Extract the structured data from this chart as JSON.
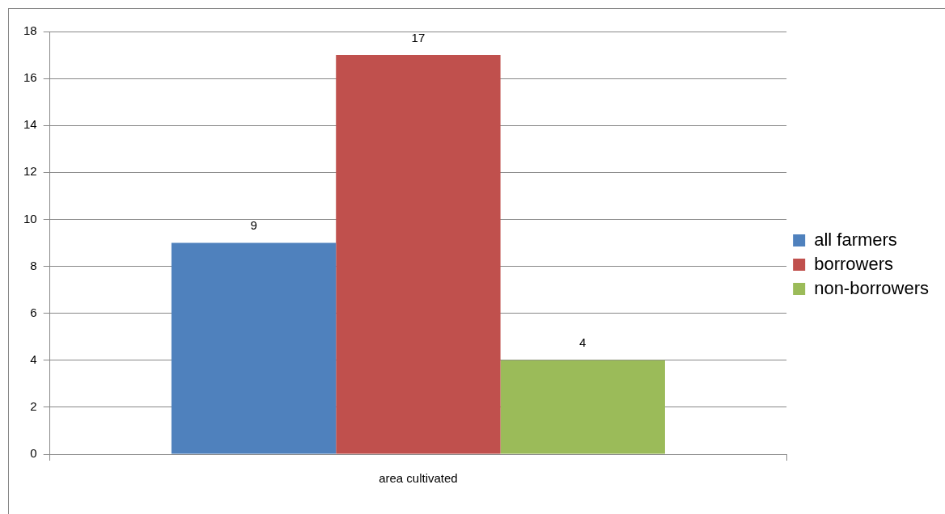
{
  "chart_data": {
    "type": "bar",
    "categories": [
      "area cultivated"
    ],
    "series": [
      {
        "name": "all farmers",
        "color": "#4f81bd",
        "values": [
          9
        ]
      },
      {
        "name": "borrowers",
        "color": "#c0504d",
        "values": [
          17
        ]
      },
      {
        "name": "non-borrowers",
        "color": "#9bbb59",
        "values": [
          4
        ]
      }
    ],
    "ylim": [
      0,
      18
    ],
    "yticks": [
      0,
      2,
      4,
      6,
      8,
      10,
      12,
      14,
      16,
      18
    ],
    "grid": "y",
    "legend": "right",
    "data_labels": true
  }
}
